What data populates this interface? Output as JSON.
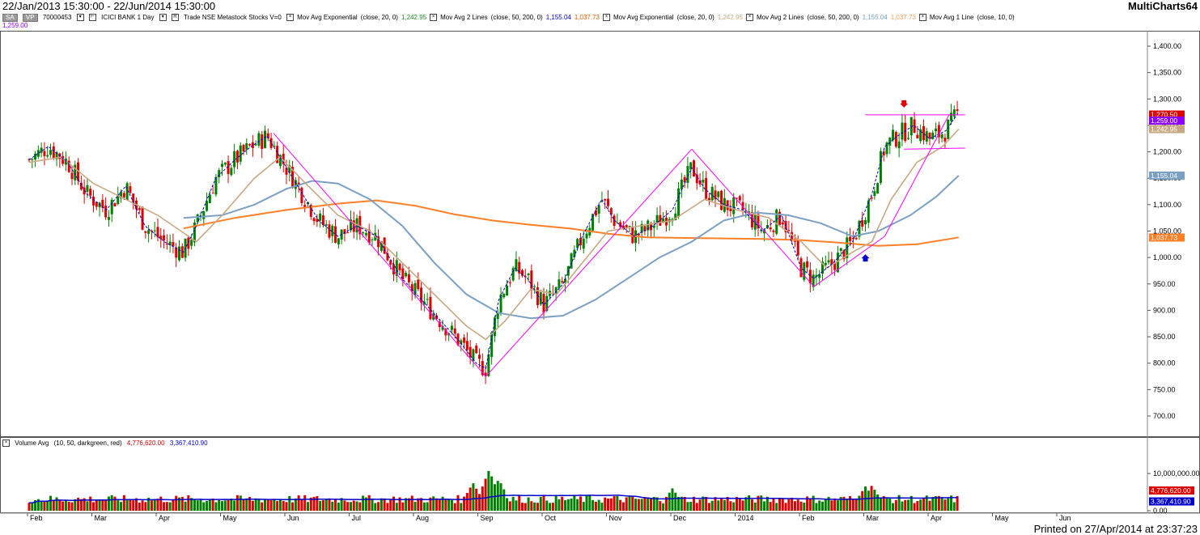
{
  "header": {
    "range": "22/Jan/2013 15:30:00 - 22/Jun/2014 15:30:00",
    "app": "MultiCharts64"
  },
  "legend": {
    "chip_sa": "SA",
    "chip_vp": "VP",
    "account": "70000453",
    "symbol": "ICICI BANK  1 Day",
    "details": "Trade  NSE  Metastock  Stocks  V=0",
    "studies": [
      {
        "name": "Mov Avg Exponential",
        "params": "(close,  20,  0)",
        "values": [
          "1,242.95"
        ],
        "colors": [
          "#228b22"
        ]
      },
      {
        "name": "Mov Avg 2 Lines",
        "params": "(close,  50,  200,  0)",
        "values": [
          "1,155.04",
          "1,037.73"
        ],
        "colors": [
          "#0000cc",
          "#e06000"
        ]
      },
      {
        "name": "Mov Avg Exponential",
        "params": "(close,  20,  0)",
        "values": [
          "1,242.95"
        ],
        "colors": [
          "#c8a882"
        ]
      },
      {
        "name": "Mov Avg 2 Lines",
        "params": "(close,  50,  200,  0)",
        "values": [
          "1,155.04",
          "1,037.73"
        ],
        "colors": [
          "#7aa0c4",
          "#f0a060"
        ]
      },
      {
        "name": "Mov Avg 1 Line",
        "params": "(close,  10,  0)",
        "values": [],
        "colors": []
      }
    ],
    "last_value": "1,259.00"
  },
  "volume_legend": {
    "name": "Volume Avg",
    "params": "(10,  50,  darkgreen,  red)",
    "v1": "4,776,620.00",
    "v2": "3,367,410.90",
    "c1": "#cc0000",
    "c2": "#0000cc"
  },
  "footer": "Printed on 27/Apr/2014 at 23:37:23",
  "colors": {
    "up": "#008000",
    "down": "#dd0000",
    "ema20": "#c8a882",
    "ma50": "#7aa0c4",
    "ma200": "#ff7f27",
    "ma10": "#0000cc",
    "pattern": "#ff00ff",
    "vol_avg_fast": "#cc0000",
    "vol_avg_slow": "#0000cc",
    "price_tag_last": "#8b00ff",
    "price_tag_close": "#dd0000",
    "price_tag_ema": "#c8a882",
    "price_tag_ma50": "#7aa0c4",
    "price_tag_ma200": "#ff7f27"
  },
  "chart_data": [
    {
      "type": "candlestick",
      "title": "ICICI BANK  1 Day",
      "x_axis_labels": [
        "Feb",
        "Mar",
        "Apr",
        "May",
        "Jun",
        "Jul",
        "Aug",
        "Sep",
        "Oct",
        "Nov",
        "Dec",
        "2014",
        "Feb",
        "Mar",
        "Apr",
        "May",
        "Jun"
      ],
      "y_axis_ticks": [
        "1,400.00",
        "1,350.00",
        "1,300.00",
        "1,250.00",
        "1,200.00",
        "1,150.00",
        "1,100.00",
        "1,050.00",
        "1,000.00",
        "950.00",
        "900.00",
        "850.00",
        "800.00",
        "750.00",
        "700.00"
      ],
      "ylim": [
        655,
        1420
      ],
      "close_path": [
        {
          "m": 0.0,
          "p": 1185
        },
        {
          "m": 0.3,
          "p": 1210
        },
        {
          "m": 0.6,
          "p": 1180
        },
        {
          "m": 0.9,
          "p": 1120
        },
        {
          "m": 1.2,
          "p": 1090
        },
        {
          "m": 1.5,
          "p": 1135
        },
        {
          "m": 1.8,
          "p": 1060
        },
        {
          "m": 2.1,
          "p": 1030
        },
        {
          "m": 2.4,
          "p": 1010
        },
        {
          "m": 2.6,
          "p": 1060
        },
        {
          "m": 2.9,
          "p": 1150
        },
        {
          "m": 3.2,
          "p": 1185
        },
        {
          "m": 3.45,
          "p": 1210
        },
        {
          "m": 3.7,
          "p": 1230
        },
        {
          "m": 3.95,
          "p": 1180
        },
        {
          "m": 4.2,
          "p": 1130
        },
        {
          "m": 4.5,
          "p": 1070
        },
        {
          "m": 4.8,
          "p": 1040
        },
        {
          "m": 5.1,
          "p": 1060
        },
        {
          "m": 5.4,
          "p": 1040
        },
        {
          "m": 5.8,
          "p": 960
        },
        {
          "m": 6.1,
          "p": 920
        },
        {
          "m": 6.4,
          "p": 880
        },
        {
          "m": 6.7,
          "p": 840
        },
        {
          "m": 6.95,
          "p": 800
        },
        {
          "m": 7.1,
          "p": 790
        },
        {
          "m": 7.3,
          "p": 920
        },
        {
          "m": 7.55,
          "p": 980
        },
        {
          "m": 7.75,
          "p": 960
        },
        {
          "m": 8.0,
          "p": 910
        },
        {
          "m": 8.3,
          "p": 950
        },
        {
          "m": 8.6,
          "p": 1040
        },
        {
          "m": 8.9,
          "p": 1110
        },
        {
          "m": 9.1,
          "p": 1070
        },
        {
          "m": 9.4,
          "p": 1040
        },
        {
          "m": 9.7,
          "p": 1060
        },
        {
          "m": 10.0,
          "p": 1090
        },
        {
          "m": 10.3,
          "p": 1170
        },
        {
          "m": 10.5,
          "p": 1130
        },
        {
          "m": 10.8,
          "p": 1100
        },
        {
          "m": 11.1,
          "p": 1090
        },
        {
          "m": 11.4,
          "p": 1050
        },
        {
          "m": 11.7,
          "p": 1080
        },
        {
          "m": 12.0,
          "p": 980
        },
        {
          "m": 12.2,
          "p": 960
        },
        {
          "m": 12.5,
          "p": 990
        },
        {
          "m": 12.8,
          "p": 1030
        },
        {
          "m": 13.1,
          "p": 1120
        },
        {
          "m": 13.3,
          "p": 1210
        },
        {
          "m": 13.5,
          "p": 1230
        },
        {
          "m": 13.75,
          "p": 1250
        },
        {
          "m": 14.0,
          "p": 1225
        },
        {
          "m": 14.25,
          "p": 1240
        },
        {
          "m": 14.45,
          "p": 1275
        }
      ],
      "ema20": [
        {
          "m": 0.0,
          "p": 1180
        },
        {
          "m": 0.5,
          "p": 1190
        },
        {
          "m": 1.0,
          "p": 1140
        },
        {
          "m": 1.5,
          "p": 1110
        },
        {
          "m": 2.0,
          "p": 1080
        },
        {
          "m": 2.6,
          "p": 1030
        },
        {
          "m": 3.0,
          "p": 1080
        },
        {
          "m": 3.5,
          "p": 1150
        },
        {
          "m": 3.9,
          "p": 1190
        },
        {
          "m": 4.3,
          "p": 1140
        },
        {
          "m": 4.8,
          "p": 1080
        },
        {
          "m": 5.3,
          "p": 1050
        },
        {
          "m": 5.8,
          "p": 990
        },
        {
          "m": 6.3,
          "p": 930
        },
        {
          "m": 6.8,
          "p": 870
        },
        {
          "m": 7.1,
          "p": 845
        },
        {
          "m": 7.4,
          "p": 880
        },
        {
          "m": 7.8,
          "p": 940
        },
        {
          "m": 8.2,
          "p": 930
        },
        {
          "m": 8.6,
          "p": 990
        },
        {
          "m": 9.0,
          "p": 1050
        },
        {
          "m": 9.5,
          "p": 1060
        },
        {
          "m": 10.0,
          "p": 1070
        },
        {
          "m": 10.5,
          "p": 1110
        },
        {
          "m": 11.0,
          "p": 1090
        },
        {
          "m": 11.5,
          "p": 1075
        },
        {
          "m": 12.0,
          "p": 1030
        },
        {
          "m": 12.4,
          "p": 980
        },
        {
          "m": 12.8,
          "p": 1010
        },
        {
          "m": 13.1,
          "p": 1030
        },
        {
          "m": 13.4,
          "p": 1110
        },
        {
          "m": 13.8,
          "p": 1180
        },
        {
          "m": 14.2,
          "p": 1210
        },
        {
          "m": 14.45,
          "p": 1243
        }
      ],
      "ma50": [
        {
          "m": 2.4,
          "p": 1075
        },
        {
          "m": 3.0,
          "p": 1080
        },
        {
          "m": 3.5,
          "p": 1100
        },
        {
          "m": 4.0,
          "p": 1130
        },
        {
          "m": 4.4,
          "p": 1145
        },
        {
          "m": 4.8,
          "p": 1140
        },
        {
          "m": 5.3,
          "p": 1110
        },
        {
          "m": 5.8,
          "p": 1060
        },
        {
          "m": 6.3,
          "p": 990
        },
        {
          "m": 6.8,
          "p": 930
        },
        {
          "m": 7.3,
          "p": 895
        },
        {
          "m": 7.8,
          "p": 885
        },
        {
          "m": 8.3,
          "p": 890
        },
        {
          "m": 8.8,
          "p": 920
        },
        {
          "m": 9.3,
          "p": 960
        },
        {
          "m": 9.8,
          "p": 1000
        },
        {
          "m": 10.3,
          "p": 1030
        },
        {
          "m": 10.8,
          "p": 1070
        },
        {
          "m": 11.3,
          "p": 1085
        },
        {
          "m": 11.8,
          "p": 1080
        },
        {
          "m": 12.3,
          "p": 1065
        },
        {
          "m": 12.8,
          "p": 1040
        },
        {
          "m": 13.2,
          "p": 1050
        },
        {
          "m": 13.7,
          "p": 1080
        },
        {
          "m": 14.1,
          "p": 1115
        },
        {
          "m": 14.45,
          "p": 1155
        }
      ],
      "ma200": [
        {
          "m": 2.4,
          "p": 1055
        },
        {
          "m": 3.2,
          "p": 1075
        },
        {
          "m": 4.0,
          "p": 1090
        },
        {
          "m": 4.8,
          "p": 1102
        },
        {
          "m": 5.4,
          "p": 1108
        },
        {
          "m": 6.0,
          "p": 1098
        },
        {
          "m": 6.6,
          "p": 1082
        },
        {
          "m": 7.2,
          "p": 1070
        },
        {
          "m": 7.8,
          "p": 1062
        },
        {
          "m": 8.4,
          "p": 1055
        },
        {
          "m": 9.0,
          "p": 1045
        },
        {
          "m": 9.6,
          "p": 1038
        },
        {
          "m": 10.2,
          "p": 1037
        },
        {
          "m": 10.8,
          "p": 1036
        },
        {
          "m": 11.4,
          "p": 1035
        },
        {
          "m": 12.0,
          "p": 1033
        },
        {
          "m": 12.6,
          "p": 1028
        },
        {
          "m": 13.2,
          "p": 1022
        },
        {
          "m": 13.8,
          "p": 1025
        },
        {
          "m": 14.45,
          "p": 1038
        }
      ],
      "pattern_lines": [
        {
          "a": {
            "m": 3.8,
            "p": 1235
          },
          "b": {
            "m": 7.1,
            "p": 775
          }
        },
        {
          "a": {
            "m": 7.1,
            "p": 775
          },
          "b": {
            "m": 10.3,
            "p": 1205
          }
        },
        {
          "a": {
            "m": 10.3,
            "p": 1205
          },
          "b": {
            "m": 12.2,
            "p": 945
          }
        },
        {
          "a": {
            "m": 12.2,
            "p": 945
          },
          "b": {
            "m": 13.3,
            "p": 1040
          }
        },
        {
          "a": {
            "m": 13.3,
            "p": 1040
          },
          "b": {
            "m": 14.3,
            "p": 1270
          }
        },
        {
          "a": {
            "m": 13.0,
            "p": 1270
          },
          "b": {
            "m": 14.55,
            "p": 1270
          }
        },
        {
          "a": {
            "m": 13.6,
            "p": 1205
          },
          "b": {
            "m": 14.55,
            "p": 1207
          }
        }
      ],
      "markers": [
        {
          "kind": "down-arrow",
          "m": 13.6,
          "p": 1290,
          "color": "#dd0000"
        },
        {
          "kind": "up-arrow",
          "m": 13.0,
          "p": 1000,
          "color": "#0000cc"
        }
      ],
      "price_tags": [
        {
          "label": "1,270.50",
          "p": 1270.5,
          "color": "#dd0000"
        },
        {
          "label": "1,259.00",
          "p": 1259,
          "color": "#8b00ff"
        },
        {
          "label": "1,242.95",
          "p": 1242.95,
          "color": "#c8a882"
        },
        {
          "label": "1,155.04",
          "p": 1155.04,
          "color": "#7aa0c4"
        },
        {
          "label": "1,037.73",
          "p": 1037.73,
          "color": "#ff7f27"
        }
      ]
    },
    {
      "type": "bar",
      "title": "Volume Avg",
      "y_axis_ticks": [
        "10,000,000.00",
        "0.00"
      ],
      "ylim": [
        0,
        12500000
      ],
      "volume_peaks": [
        {
          "m": 6.9,
          "v": 7500000
        },
        {
          "m": 7.15,
          "v": 11000000
        },
        {
          "m": 7.3,
          "v": 8500000
        },
        {
          "m": 10.0,
          "v": 6000000
        },
        {
          "m": 13.0,
          "v": 6500000
        },
        {
          "m": 13.1,
          "v": 6800000
        }
      ],
      "price_tags": [
        {
          "label": "4,776,620.00",
          "v": 4776620,
          "color": "#dd0000"
        },
        {
          "label": "3,367,410.90",
          "v": 3367410.9,
          "color": "#0000cc"
        }
      ]
    }
  ]
}
